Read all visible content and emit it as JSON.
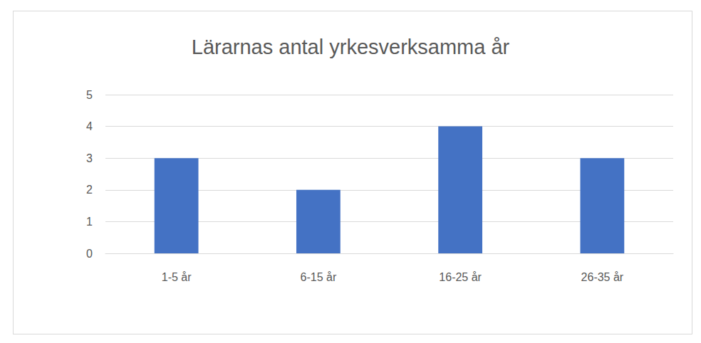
{
  "chart_data": {
    "type": "bar",
    "title": "Lärarnas antal yrkesverksamma år",
    "categories": [
      "1-5 år",
      "6-15 år",
      "16-25 år",
      "26-35 år"
    ],
    "values": [
      3,
      2,
      4,
      3
    ],
    "color": "#4472c4",
    "ylim": [
      0,
      5
    ],
    "yticks": [
      0,
      1,
      2,
      3,
      4,
      5
    ],
    "grid": true
  }
}
